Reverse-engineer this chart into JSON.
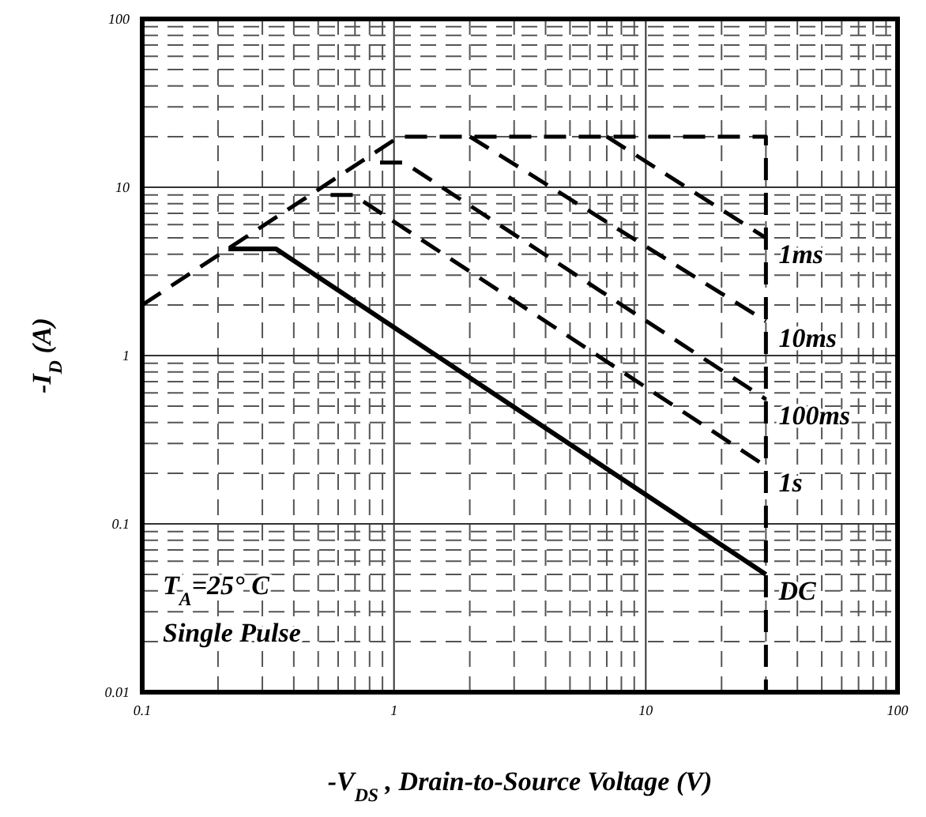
{
  "chart_data": {
    "type": "line",
    "xlabel": "-V$_{DS}$ , Drain-to-Source Voltage (V)",
    "ylabel": "-I$_{D}$ (A)",
    "log": "xy",
    "grid": true,
    "xlim": [
      0.1,
      100
    ],
    "ylim": [
      0.01,
      100
    ],
    "xticks": [
      0.1,
      1,
      10,
      100
    ],
    "yticks": [
      0.01,
      0.1,
      1,
      10,
      100
    ],
    "series": [
      {
        "color": "#000000",
        "line_style": "dashed",
        "x": [
          0.1,
          1.05,
          30,
          30
        ],
        "values": [
          2,
          20,
          20,
          0.01
        ]
      },
      {
        "name": "1ms",
        "color": "#000000",
        "line_style": "dashed",
        "x": [
          7,
          30
        ],
        "values": [
          20,
          5
        ]
      },
      {
        "name": "10ms",
        "color": "#000000",
        "line_style": "dashed",
        "x": [
          2,
          30
        ],
        "values": [
          20,
          1.6
        ]
      },
      {
        "name": "100ms",
        "color": "#000000",
        "line_style": "dashed",
        "x": [
          0.88,
          1.1,
          30
        ],
        "values": [
          14,
          14,
          0.55
        ]
      },
      {
        "name": "1s",
        "color": "#000000",
        "line_style": "dashed",
        "x": [
          0.56,
          0.69,
          30
        ],
        "values": [
          9,
          9,
          0.22
        ]
      },
      {
        "name": "DC",
        "color": "#000000",
        "line_style": "solid",
        "x": [
          0.22,
          0.34,
          30
        ],
        "values": [
          4.3,
          4.3,
          0.05
        ]
      }
    ],
    "annotations": [
      "T$_{A}$=25° C",
      "Single Pulse"
    ]
  }
}
